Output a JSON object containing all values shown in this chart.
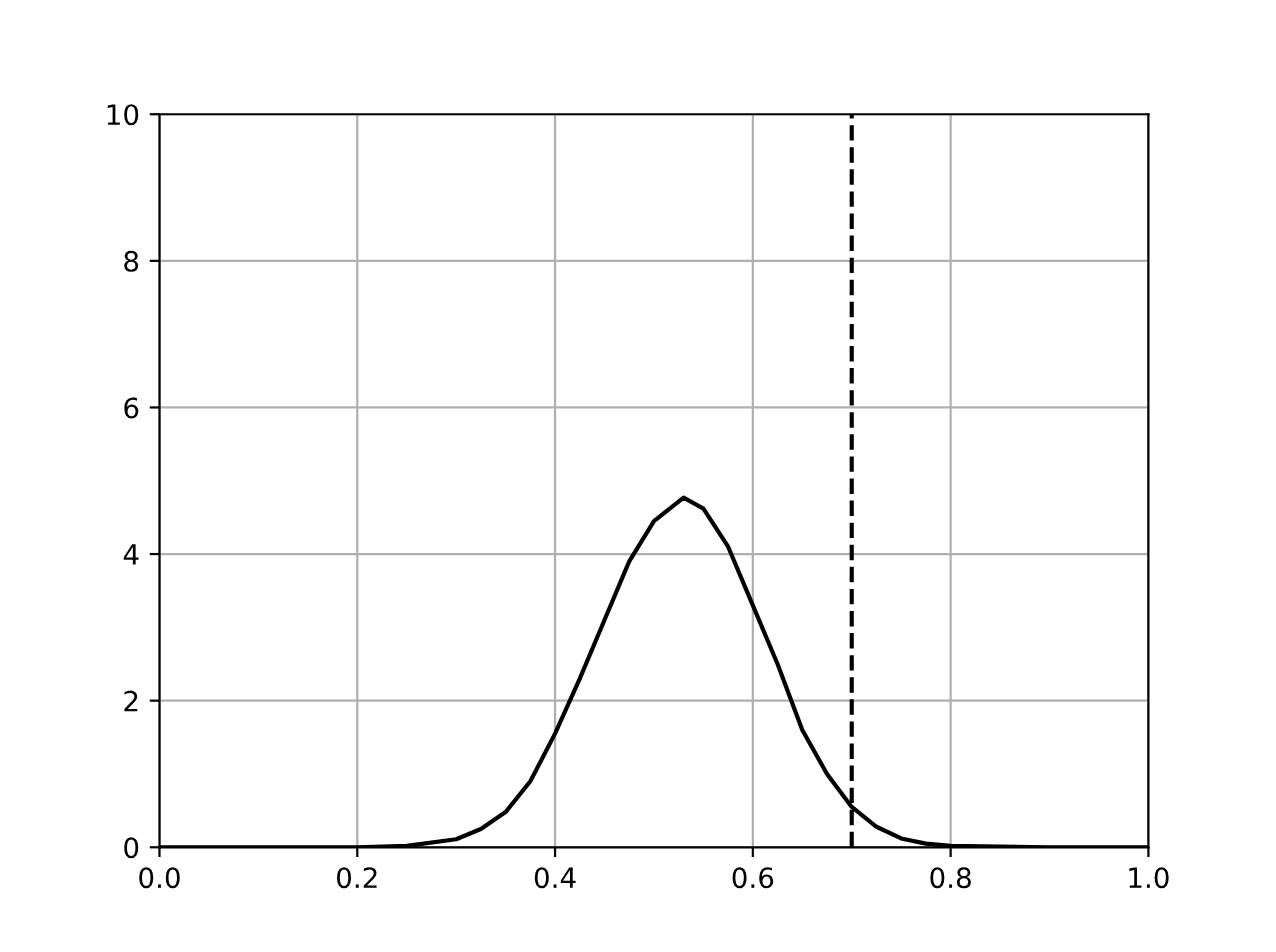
{
  "chart_data": {
    "type": "line",
    "series": [
      {
        "color": "#000000",
        "x": [
          0,
          0.1,
          0.2,
          0.25,
          0.3,
          0.325,
          0.35,
          0.375,
          0.4,
          0.425,
          0.45,
          0.475,
          0.5,
          0.53,
          0.55,
          0.575,
          0.6,
          0.625,
          0.65,
          0.675,
          0.7,
          0.725,
          0.75,
          0.775,
          0.8,
          0.9,
          1.0
        ],
        "values": [
          0,
          0,
          0,
          0.02,
          0.11,
          0.25,
          0.48,
          0.9,
          1.55,
          2.3,
          3.1,
          3.9,
          4.45,
          4.77,
          4.62,
          4.1,
          3.3,
          2.5,
          1.6,
          1.0,
          0.55,
          0.28,
          0.12,
          0.05,
          0.02,
          0,
          0
        ]
      }
    ],
    "xlim": [
      0,
      1
    ],
    "ylim": [
      0,
      10
    ],
    "xticks": [
      {
        "value": 0,
        "label": "0.0"
      },
      {
        "value": 0.2,
        "label": "0.2"
      },
      {
        "value": 0.4,
        "label": "0.4"
      },
      {
        "value": 0.6,
        "label": "0.6"
      },
      {
        "value": 0.8,
        "label": "0.8"
      },
      {
        "value": 1.0,
        "label": "1.0"
      }
    ],
    "yticks": [
      0,
      2,
      4,
      6,
      8,
      10
    ],
    "ref_lines": [
      {
        "axis": "x",
        "value": 0.7,
        "color": "#000000",
        "line_style": "dashed"
      }
    ],
    "grid": true,
    "marker": "none",
    "line_style": "solid"
  }
}
